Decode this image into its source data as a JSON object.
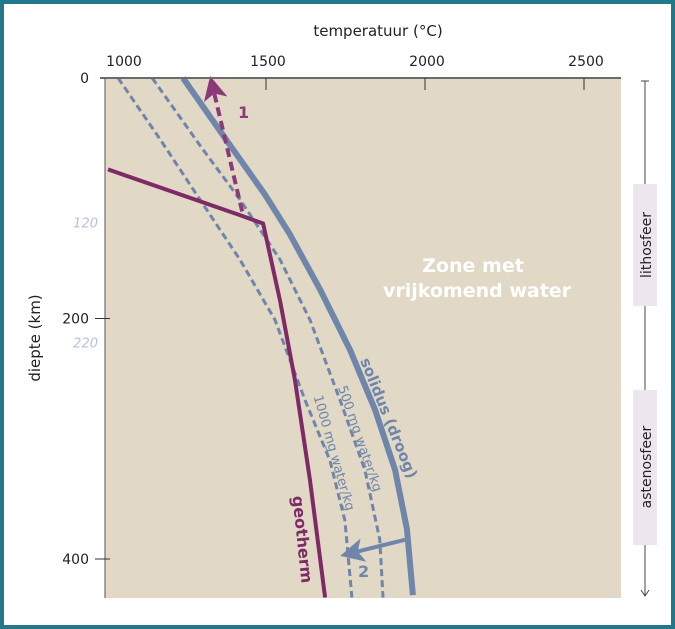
{
  "chart_data": {
    "type": "line",
    "xlabel": "temperatuur (°C)",
    "ylabel": "diepte (km)",
    "xlim": [
      1000,
      2620
    ],
    "ylim": [
      0,
      432
    ],
    "x_ticks": [
      1000,
      1500,
      2000,
      2500
    ],
    "y_ticks": [
      0,
      200,
      400
    ],
    "zone": {
      "label_line1": "Zone met",
      "label_line2": "vrijkomend water",
      "top": 120,
      "bottom": 220,
      "top_label": "120",
      "bottom_label": "220"
    },
    "layers": [
      {
        "label": "lithosfeer"
      },
      {
        "label": "astenosfeer"
      }
    ],
    "series": [
      {
        "name": "solidus (droog)",
        "style": "solid",
        "color": "#6f86aa",
        "points": [
          [
            1239,
            0
          ],
          [
            1387,
            56
          ],
          [
            1497,
            97
          ],
          [
            1575,
            130
          ],
          [
            1670,
            176
          ],
          [
            1764,
            226
          ],
          [
            1843,
            276
          ],
          [
            1906,
            326
          ],
          [
            1943,
            375
          ],
          [
            1962,
            430
          ]
        ]
      },
      {
        "name": "500 mg water/kg",
        "style": "dashed",
        "color": "#6f86aa",
        "points": [
          [
            1142,
            0
          ],
          [
            1292,
            56
          ],
          [
            1418,
            101
          ],
          [
            1544,
            151
          ],
          [
            1638,
            201
          ],
          [
            1733,
            268
          ],
          [
            1811,
            326
          ],
          [
            1858,
            384
          ],
          [
            1868,
            432
          ]
        ]
      },
      {
        "name": "1000 mg water/kg",
        "style": "dashed",
        "color": "#6f86aa",
        "points": [
          [
            1035,
            0
          ],
          [
            1167,
            51
          ],
          [
            1292,
            101
          ],
          [
            1418,
            151
          ],
          [
            1528,
            201
          ],
          [
            1623,
            268
          ],
          [
            1701,
            318
          ],
          [
            1748,
            368
          ],
          [
            1770,
            432
          ]
        ]
      },
      {
        "name": "geotherm",
        "style": "solid",
        "color": "#7e2a67",
        "points": [
          [
            1003,
            76
          ],
          [
            1418,
            114
          ],
          [
            1491,
            121
          ],
          [
            1544,
            185
          ],
          [
            1591,
            251
          ],
          [
            1638,
            334
          ],
          [
            1686,
            432
          ]
        ]
      }
    ],
    "annotations": [
      {
        "label": "1",
        "color": "#8a3a78",
        "from": [
          1425,
          111
        ],
        "to": [
          1333,
          8
        ],
        "style": "dashed"
      },
      {
        "label": "2",
        "color": "#6f86aa",
        "from": [
          1937,
          384
        ],
        "to": [
          1770,
          395
        ],
        "style": "solid"
      }
    ]
  }
}
